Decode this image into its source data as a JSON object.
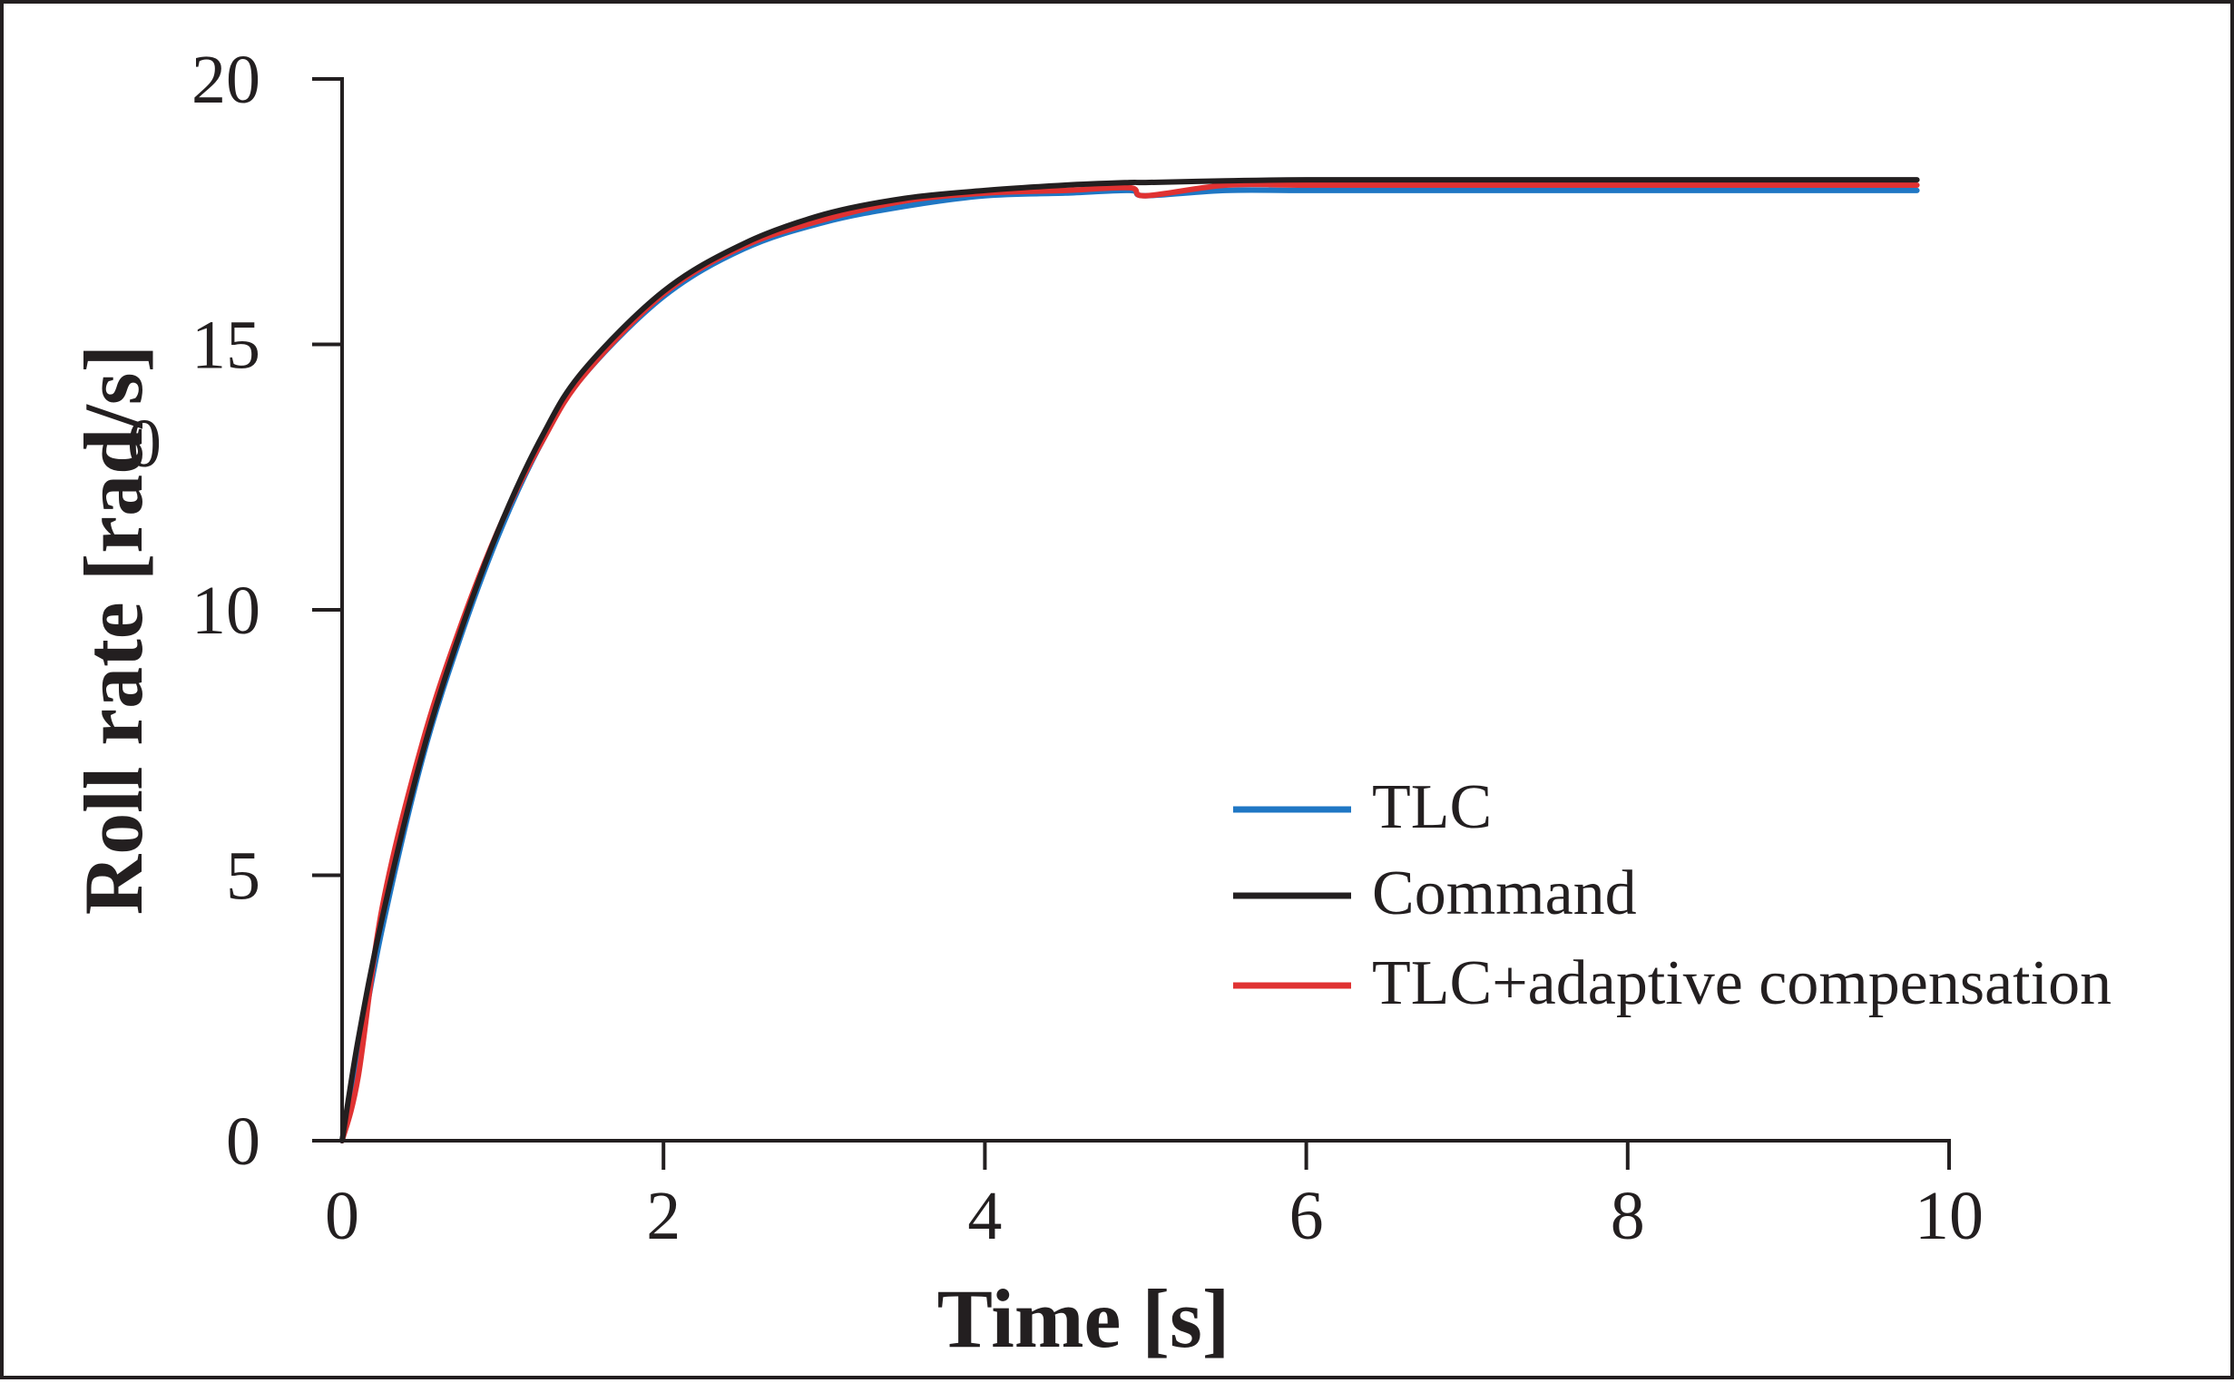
{
  "chart_data": {
    "type": "line",
    "title": "",
    "xlabel": "Time [s]",
    "ylabel": "Roll rate [rad/s]",
    "xlim": [
      0,
      10
    ],
    "ylim": [
      0,
      20
    ],
    "xticks": [
      0,
      2,
      4,
      6,
      8,
      10
    ],
    "yticks": [
      0,
      5,
      10,
      15,
      20
    ],
    "xtick_labels": [
      "0",
      "2",
      "4",
      "6",
      "8",
      "10"
    ],
    "ytick_labels": [
      "0",
      "5",
      "10",
      "15",
      "20"
    ],
    "stray_label": "0",
    "grid": false,
    "legend_position": "lower-right",
    "series": [
      {
        "name": "TLC",
        "color": "#1f77c4",
        "x": [
          0,
          0.1,
          0.25,
          0.5,
          0.75,
          1.0,
          1.25,
          1.5,
          2.0,
          2.5,
          3.0,
          3.5,
          4.0,
          4.5,
          4.9,
          5.0,
          5.5,
          6.0,
          7.0,
          8.0,
          9.0,
          9.8
        ],
        "y": [
          0,
          1.6,
          4.0,
          7.2,
          9.6,
          11.6,
          13.2,
          14.4,
          15.9,
          16.8,
          17.3,
          17.6,
          17.8,
          17.85,
          17.9,
          17.8,
          17.9,
          17.9,
          17.9,
          17.9,
          17.9,
          17.9
        ]
      },
      {
        "name": "Command",
        "color": "#231f20",
        "x": [
          0,
          0.1,
          0.25,
          0.5,
          0.75,
          1.0,
          1.25,
          1.5,
          2.0,
          2.5,
          3.0,
          3.5,
          4.0,
          4.5,
          4.9,
          5.0,
          5.5,
          6.0,
          7.0,
          8.0,
          9.0,
          9.8
        ],
        "y": [
          0,
          1.9,
          4.2,
          7.3,
          9.7,
          11.7,
          13.3,
          14.5,
          16.0,
          16.9,
          17.45,
          17.75,
          17.9,
          18.0,
          18.05,
          18.05,
          18.08,
          18.1,
          18.1,
          18.1,
          18.1,
          18.1
        ]
      },
      {
        "name": "TLC+adaptive compensation",
        "color": "#e03232",
        "x": [
          0,
          0.1,
          0.25,
          0.5,
          0.75,
          1.0,
          1.25,
          1.5,
          2.0,
          2.5,
          3.0,
          3.5,
          4.0,
          4.5,
          4.9,
          5.0,
          5.5,
          6.0,
          7.0,
          8.0,
          9.0,
          9.8
        ],
        "y": [
          0,
          1.2,
          4.4,
          7.5,
          9.8,
          11.7,
          13.2,
          14.4,
          15.95,
          16.85,
          17.35,
          17.7,
          17.85,
          17.9,
          17.95,
          17.8,
          18.0,
          18.0,
          18.0,
          18.0,
          18.0,
          18.0
        ]
      }
    ]
  }
}
